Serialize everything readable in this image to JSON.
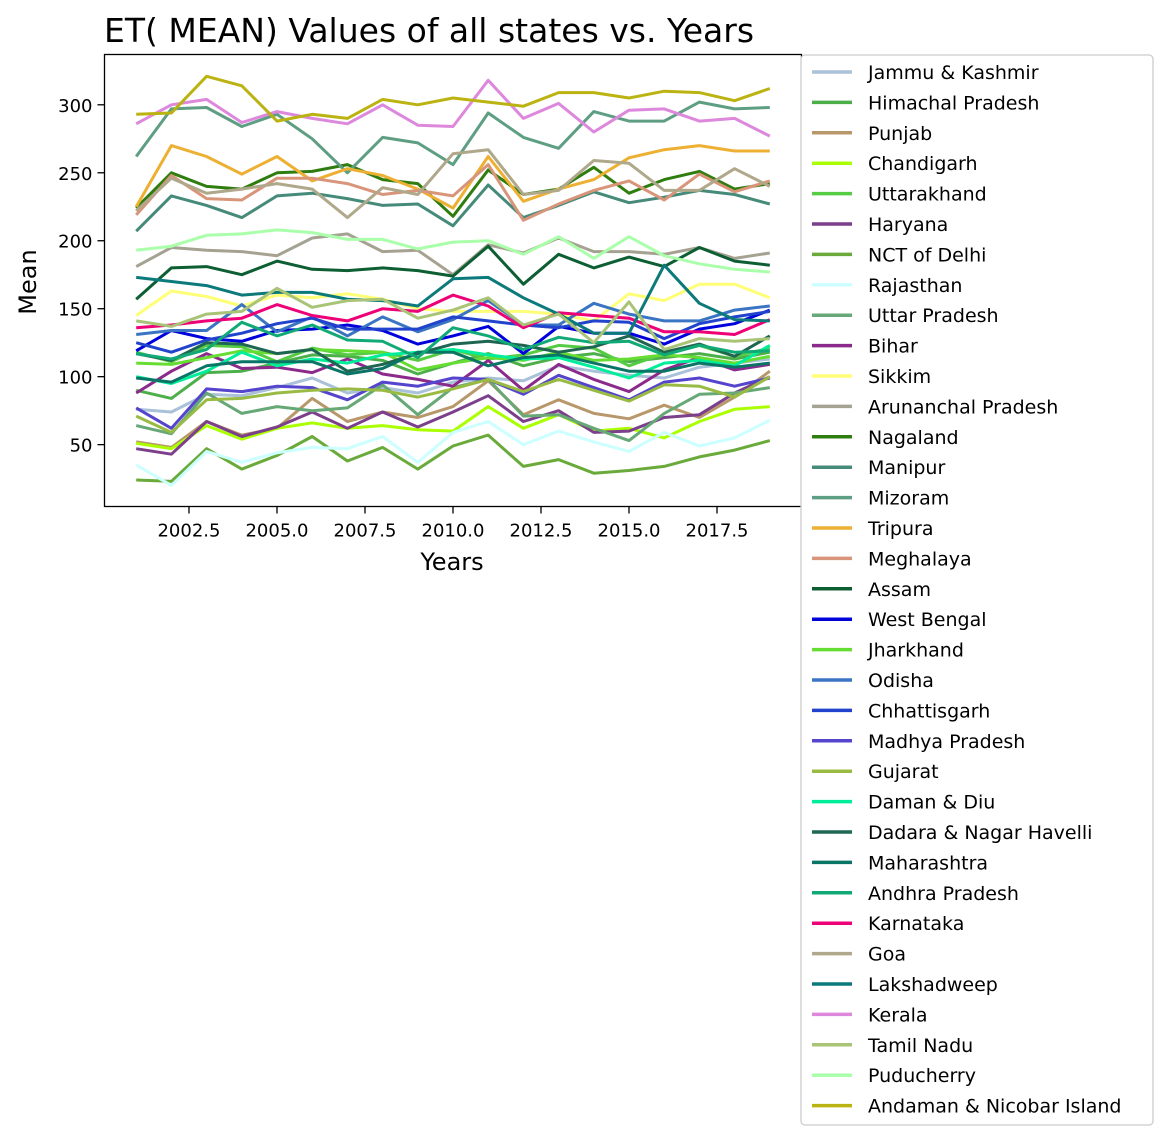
{
  "chart_data": {
    "type": "line",
    "title": "ET( MEAN) Values of all states vs. Years",
    "xlabel": "Years",
    "ylabel": "Mean",
    "xlim": [
      2000.1,
      2019.9
    ],
    "ylim": [
      4.5,
      337
    ],
    "xticks": [
      2002.5,
      2005.0,
      2007.5,
      2010.0,
      2012.5,
      2015.0,
      2017.5
    ],
    "xtick_labels": [
      "2002.5",
      "2005.0",
      "2007.5",
      "2010.0",
      "2012.5",
      "2015.0",
      "2017.5"
    ],
    "yticks": [
      50,
      100,
      150,
      200,
      250,
      300
    ],
    "ytick_labels": [
      "50",
      "100",
      "150",
      "200",
      "250",
      "300"
    ],
    "grid": false,
    "legend_position": "outside-right",
    "x": [
      2001,
      2002,
      2003,
      2004,
      2005,
      2006,
      2007,
      2008,
      2009,
      2010,
      2011,
      2012,
      2013,
      2014,
      2015,
      2016,
      2017,
      2018,
      2019
    ],
    "series": [
      {
        "name": "Jammu & Kashmir",
        "color": "#a9c1d9",
        "values": [
          76,
          74,
          87,
          86,
          92,
          99,
          88,
          92,
          88,
          96,
          99,
          97,
          108,
          104,
          101,
          99,
          107,
          110,
          113
        ]
      },
      {
        "name": "Himachal Pradesh",
        "color": "#4daf4a",
        "values": [
          90,
          84,
          103,
          104,
          110,
          116,
          115,
          112,
          102,
          110,
          117,
          108,
          114,
          117,
          111,
          114,
          117,
          113,
          118
        ]
      },
      {
        "name": "Punjab",
        "color": "#b8976a",
        "values": [
          52,
          48,
          67,
          57,
          62,
          84,
          67,
          74,
          70,
          78,
          97,
          72,
          83,
          73,
          69,
          79,
          70,
          85,
          104
        ]
      },
      {
        "name": "Chandigarh",
        "color": "#aaff00",
        "values": [
          51,
          47,
          64,
          54,
          62,
          66,
          62,
          64,
          61,
          60,
          78,
          62,
          72,
          60,
          62,
          55,
          67,
          76,
          78
        ]
      },
      {
        "name": "Uttarakhand",
        "color": "#55cc44",
        "values": [
          118,
          111,
          123,
          122,
          111,
          121,
          116,
          118,
          112,
          120,
          113,
          116,
          123,
          121,
          108,
          117,
          123,
          115,
          121
        ]
      },
      {
        "name": "Haryana",
        "color": "#7b3f8c",
        "values": [
          47,
          43,
          67,
          56,
          63,
          74,
          62,
          74,
          63,
          74,
          86,
          67,
          75,
          59,
          60,
          70,
          72,
          88,
          100
        ]
      },
      {
        "name": "NCT of Delhi",
        "color": "#6aaa3a",
        "values": [
          24,
          23,
          47,
          32,
          42,
          56,
          38,
          48,
          32,
          49,
          57,
          34,
          39,
          29,
          31,
          34,
          41,
          46,
          53
        ]
      },
      {
        "name": "Rajasthan",
        "color": "#ccffff",
        "values": [
          35,
          20,
          45,
          37,
          44,
          48,
          47,
          56,
          37,
          59,
          67,
          50,
          60,
          52,
          45,
          59,
          49,
          55,
          68
        ]
      },
      {
        "name": "Uttar Pradesh",
        "color": "#66a876",
        "values": [
          64,
          58,
          88,
          73,
          78,
          75,
          77,
          94,
          72,
          92,
          98,
          71,
          72,
          62,
          53,
          73,
          87,
          88,
          92
        ]
      },
      {
        "name": "Bihar",
        "color": "#8b2a8b",
        "values": [
          88,
          104,
          117,
          106,
          107,
          103,
          113,
          102,
          98,
          93,
          112,
          90,
          109,
          98,
          89,
          105,
          114,
          105,
          109
        ]
      },
      {
        "name": "Sikkim",
        "color": "#ffff77",
        "values": [
          145,
          163,
          159,
          152,
          160,
          158,
          161,
          157,
          150,
          148,
          148,
          148,
          146,
          141,
          161,
          156,
          168,
          168,
          158
        ]
      },
      {
        "name": "Arunanchal Pradesh",
        "color": "#a6a292",
        "values": [
          181,
          195,
          193,
          192,
          189,
          202,
          205,
          192,
          193,
          175,
          197,
          191,
          202,
          192,
          192,
          190,
          195,
          187,
          191
        ]
      },
      {
        "name": "Nagaland",
        "color": "#2e7d0e",
        "values": [
          224,
          250,
          240,
          238,
          250,
          251,
          256,
          245,
          242,
          218,
          252,
          234,
          238,
          254,
          235,
          245,
          251,
          238,
          242
        ]
      },
      {
        "name": "Manipur",
        "color": "#468a7a",
        "values": [
          207,
          233,
          226,
          217,
          233,
          235,
          231,
          226,
          227,
          211,
          241,
          217,
          226,
          236,
          228,
          232,
          237,
          234,
          227
        ]
      },
      {
        "name": "Mizoram",
        "color": "#5e9e82",
        "values": [
          262,
          297,
          298,
          284,
          293,
          275,
          250,
          276,
          272,
          256,
          294,
          276,
          268,
          295,
          288,
          288,
          302,
          297,
          298
        ]
      },
      {
        "name": "Tripura",
        "color": "#eeb033",
        "values": [
          225,
          270,
          262,
          249,
          262,
          244,
          253,
          248,
          238,
          224,
          262,
          229,
          238,
          245,
          261,
          267,
          270,
          266,
          266
        ]
      },
      {
        "name": "Meghalaya",
        "color": "#d9957a",
        "values": [
          219,
          248,
          231,
          230,
          246,
          246,
          242,
          234,
          237,
          233,
          256,
          215,
          227,
          237,
          244,
          230,
          249,
          236,
          244
        ]
      },
      {
        "name": "Assam",
        "color": "#0d5e33",
        "values": [
          157,
          180,
          181,
          175,
          185,
          179,
          178,
          180,
          178,
          174,
          196,
          168,
          190,
          180,
          188,
          181,
          195,
          185,
          182
        ]
      },
      {
        "name": "West Bengal",
        "color": "#0000dd",
        "values": [
          119,
          134,
          128,
          126,
          134,
          135,
          138,
          134,
          124,
          130,
          137,
          117,
          137,
          132,
          132,
          124,
          135,
          139,
          149
        ]
      },
      {
        "name": "Jharkhand",
        "color": "#66dd33",
        "values": [
          110,
          109,
          114,
          119,
          117,
          120,
          119,
          118,
          105,
          110,
          114,
          112,
          118,
          112,
          113,
          116,
          114,
          110,
          115
        ]
      },
      {
        "name": "Odisha",
        "color": "#3a74c2",
        "values": [
          131,
          134,
          134,
          153,
          133,
          144,
          130,
          144,
          133,
          142,
          156,
          138,
          138,
          154,
          146,
          141,
          141,
          149,
          152
        ]
      },
      {
        "name": "Chhattisgarh",
        "color": "#2244cc",
        "values": [
          125,
          118,
          127,
          132,
          139,
          143,
          135,
          135,
          135,
          144,
          141,
          138,
          136,
          141,
          140,
          128,
          139,
          144,
          148
        ]
      },
      {
        "name": "Madhya Pradesh",
        "color": "#5544cc",
        "values": [
          77,
          62,
          91,
          89,
          93,
          92,
          83,
          96,
          93,
          99,
          98,
          87,
          101,
          92,
          83,
          96,
          99,
          93,
          99
        ]
      },
      {
        "name": "Gujarat",
        "color": "#99bb44",
        "values": [
          71,
          59,
          83,
          84,
          88,
          90,
          91,
          90,
          85,
          91,
          98,
          89,
          98,
          90,
          82,
          94,
          93,
          85,
          100
        ]
      },
      {
        "name": "Daman & Diu",
        "color": "#00ee99",
        "values": [
          100,
          95,
          104,
          118,
          108,
          113,
          110,
          116,
          118,
          120,
          116,
          113,
          114,
          107,
          99,
          110,
          112,
          108,
          123
        ]
      },
      {
        "name": "Dadara & Nagar Havelli",
        "color": "#1f6652",
        "values": [
          117,
          112,
          125,
          124,
          117,
          120,
          104,
          109,
          117,
          124,
          126,
          123,
          118,
          122,
          130,
          118,
          124,
          115,
          130
        ]
      },
      {
        "name": "Maharashtra",
        "color": "#0a7466",
        "values": [
          99,
          96,
          108,
          111,
          111,
          111,
          102,
          106,
          118,
          118,
          108,
          114,
          116,
          110,
          104,
          104,
          110,
          107,
          110
        ]
      },
      {
        "name": "Andhra Pradesh",
        "color": "#11aa77",
        "values": [
          117,
          113,
          120,
          140,
          130,
          138,
          127,
          126,
          114,
          136,
          130,
          120,
          129,
          125,
          126,
          116,
          123,
          118,
          119
        ]
      },
      {
        "name": "Karnataka",
        "color": "#ee0077",
        "values": [
          136,
          138,
          141,
          143,
          153,
          145,
          141,
          150,
          148,
          160,
          152,
          136,
          147,
          145,
          143,
          133,
          133,
          131,
          142
        ]
      },
      {
        "name": "Goa",
        "color": "#b0a88a",
        "values": [
          222,
          246,
          235,
          238,
          242,
          238,
          217,
          239,
          234,
          264,
          267,
          234,
          237,
          259,
          257,
          237,
          237,
          253,
          240
        ]
      },
      {
        "name": "Lakshadweep",
        "color": "#0c7a7a",
        "values": [
          173,
          170,
          167,
          160,
          162,
          162,
          157,
          156,
          152,
          172,
          173,
          158,
          146,
          132,
          132,
          182,
          154,
          142,
          141
        ]
      },
      {
        "name": "Kerala",
        "color": "#dd88dd",
        "values": [
          286,
          300,
          304,
          287,
          295,
          290,
          286,
          300,
          285,
          284,
          318,
          290,
          301,
          280,
          296,
          297,
          288,
          290,
          277
        ]
      },
      {
        "name": "Tamil Nadu",
        "color": "#aac477",
        "values": [
          141,
          137,
          146,
          148,
          165,
          151,
          156,
          157,
          143,
          149,
          158,
          138,
          146,
          125,
          155,
          120,
          128,
          126,
          128
        ]
      },
      {
        "name": "Puducherry",
        "color": "#aaffaa",
        "values": [
          193,
          196,
          204,
          205,
          208,
          206,
          201,
          201,
          194,
          199,
          200,
          190,
          203,
          187,
          203,
          189,
          183,
          179,
          177
        ]
      },
      {
        "name": "Andaman & Nicobar Island",
        "color": "#bbb311",
        "values": [
          293,
          294,
          321,
          314,
          288,
          293,
          290,
          304,
          300,
          305,
          302,
          299,
          309,
          309,
          305,
          310,
          309,
          303,
          312
        ]
      }
    ]
  }
}
